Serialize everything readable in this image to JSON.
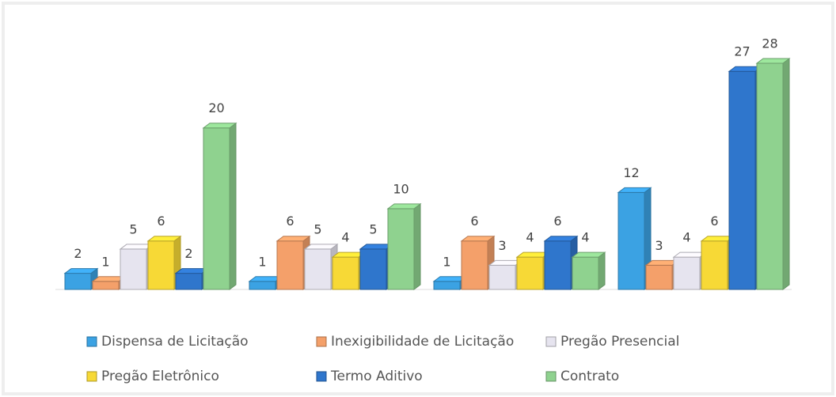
{
  "chart_data": {
    "type": "bar3d",
    "categories": [
      null,
      null,
      null,
      null
    ],
    "series": [
      {
        "name": "Dispensa de Licitação",
        "color": "#3ba2e3",
        "values": [
          2,
          1,
          1,
          12
        ]
      },
      {
        "name": "Inexigibilidade de Licitação",
        "color": "#f4a06a",
        "values": [
          1,
          6,
          6,
          3
        ]
      },
      {
        "name": "Pregão Presencial",
        "color": "#e6e4ef",
        "values": [
          5,
          5,
          3,
          4
        ]
      },
      {
        "name": "Pregão Eletrônico",
        "color": "#f7d936",
        "values": [
          6,
          4,
          4,
          6
        ]
      },
      {
        "name": "Termo Aditivo",
        "color": "#2f76cc",
        "values": [
          2,
          5,
          6,
          27
        ]
      },
      {
        "name": "Contrato",
        "color": "#8fd28f",
        "values": [
          20,
          10,
          4,
          28
        ]
      }
    ]
  }
}
